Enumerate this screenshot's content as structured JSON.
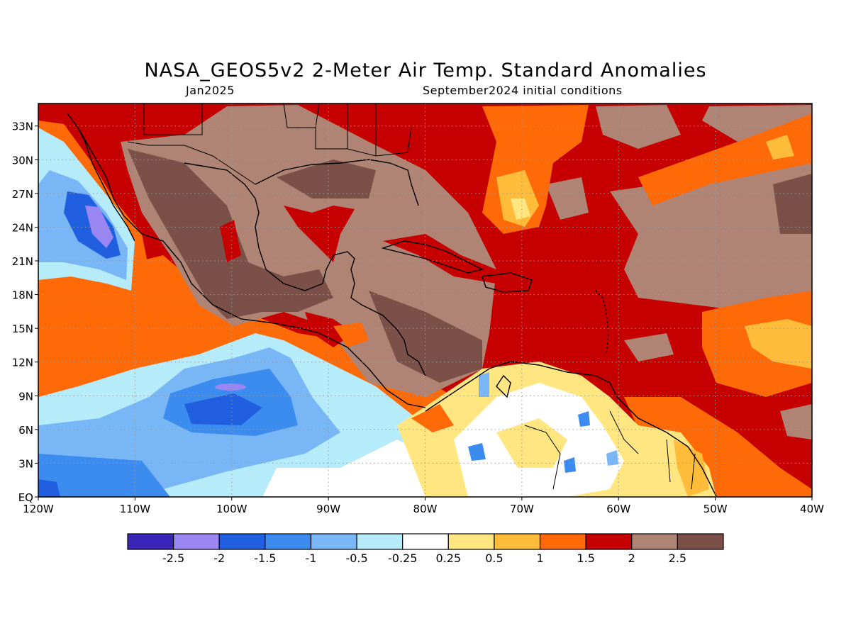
{
  "header": {
    "title": "NASA_GEOS5v2 2-Meter Air Temp. Standard Anomalies",
    "valid_month": "Jan2025",
    "init_conditions": "September2024 initial conditions"
  },
  "map": {
    "projection": "lat-lon",
    "lon_range": [
      -120,
      -40
    ],
    "lat_range": [
      0,
      35
    ],
    "lat_ticks": [
      "EQ",
      "3N",
      "6N",
      "9N",
      "12N",
      "15N",
      "18N",
      "21N",
      "24N",
      "27N",
      "30N",
      "33N"
    ],
    "lon_ticks": [
      "120W",
      "110W",
      "100W",
      "90W",
      "80W",
      "70W",
      "60W",
      "50W",
      "40W"
    ],
    "gridlines": "dotted"
  },
  "colorbar": {
    "labels": [
      "-2.5",
      "-2",
      "-1.5",
      "-1",
      "-0.5",
      "-0.25",
      "0.25",
      "0.5",
      "1",
      "1.5",
      "2",
      "2.5"
    ],
    "colors": [
      "#3a25b8",
      "#9a86f2",
      "#2060e0",
      "#3c8cf0",
      "#78b6f6",
      "#b6ecfa",
      "#ffffff",
      "#ffe680",
      "#ffbb3a",
      "#ff6a08",
      "#c60000",
      "#b08474",
      "#7a5048"
    ]
  }
}
